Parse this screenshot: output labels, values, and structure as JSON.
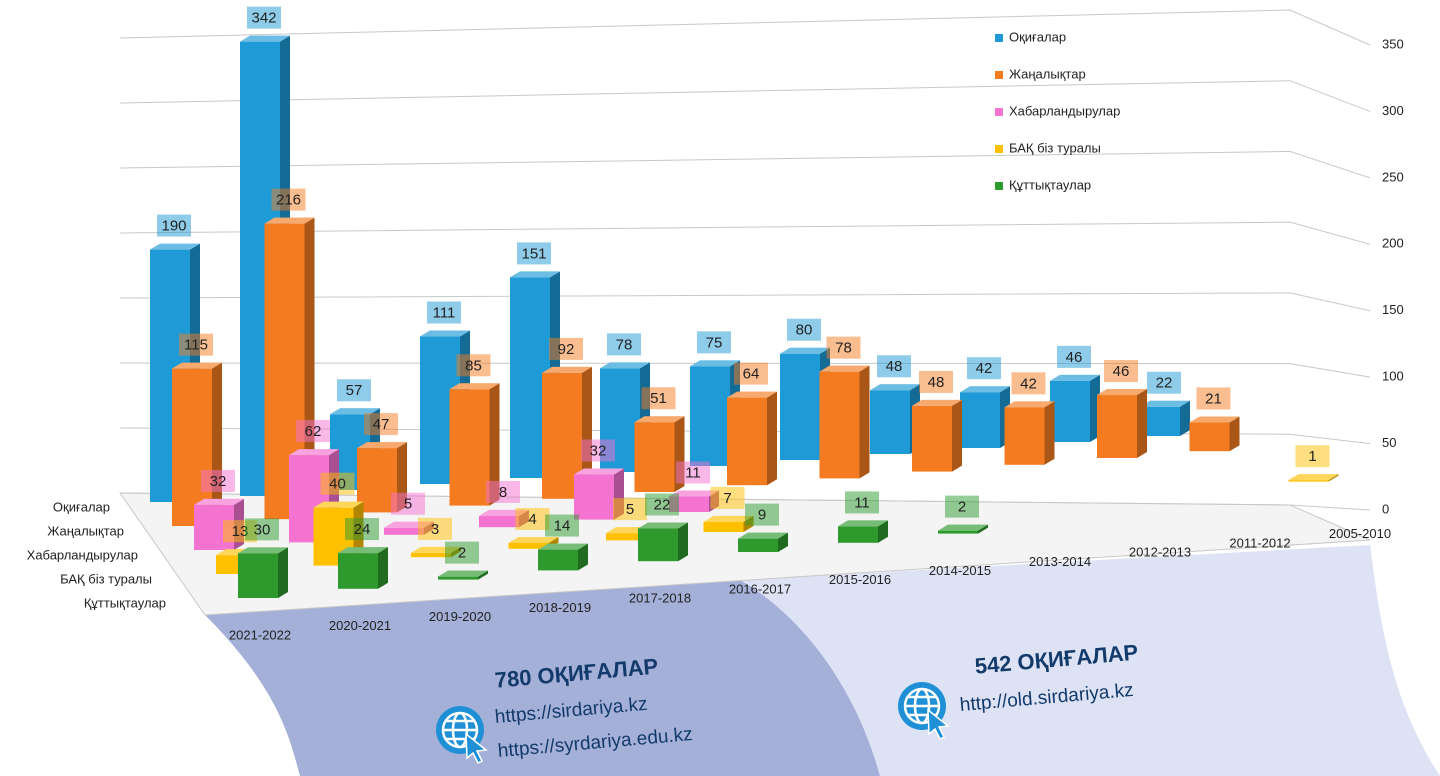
{
  "chart_data": {
    "type": "bar3d",
    "categories": [
      "2021-2022",
      "2020-2021",
      "2019-2020",
      "2018-2019",
      "2017-2018",
      "2016-2017",
      "2015-2016",
      "2014-2015",
      "2013-2014",
      "2012-2013",
      "2011-2012",
      "2005-2010"
    ],
    "series": [
      {
        "name": "Оқиғалар",
        "color": "#1e9ad6",
        "values": [
          190,
          342,
          57,
          111,
          151,
          78,
          75,
          80,
          48,
          42,
          46,
          22
        ]
      },
      {
        "name": "Жаңалықтар",
        "color": "#f47b20",
        "values": [
          115,
          216,
          47,
          85,
          92,
          51,
          64,
          78,
          48,
          42,
          46,
          21
        ]
      },
      {
        "name": "Хабарландырулар",
        "color": "#f472d0",
        "values": [
          32,
          62,
          5,
          8,
          32,
          11,
          null,
          null,
          null,
          null,
          null,
          null
        ]
      },
      {
        "name": "БАҚ біз туралы",
        "color": "#ffc000",
        "values": [
          13,
          40,
          3,
          4,
          5,
          7,
          null,
          null,
          null,
          null,
          null,
          1
        ]
      },
      {
        "name": "Құттықтаулар",
        "color": "#2e9a2e",
        "values": [
          30,
          24,
          2,
          14,
          22,
          9,
          11,
          2,
          null,
          null,
          null,
          null
        ]
      }
    ],
    "ylim": [
      0,
      350
    ],
    "yticks": [
      0,
      50,
      100,
      150,
      200,
      250,
      300,
      350
    ],
    "grid": true,
    "legend": "top-right",
    "annotations": [
      "780 ОҚИҒАЛАР",
      "https://sirdariya.kz",
      "https://syrdariya.edu.kz",
      "542 ОҚИҒАЛАР",
      "http://old.sirdariya.kz"
    ]
  }
}
